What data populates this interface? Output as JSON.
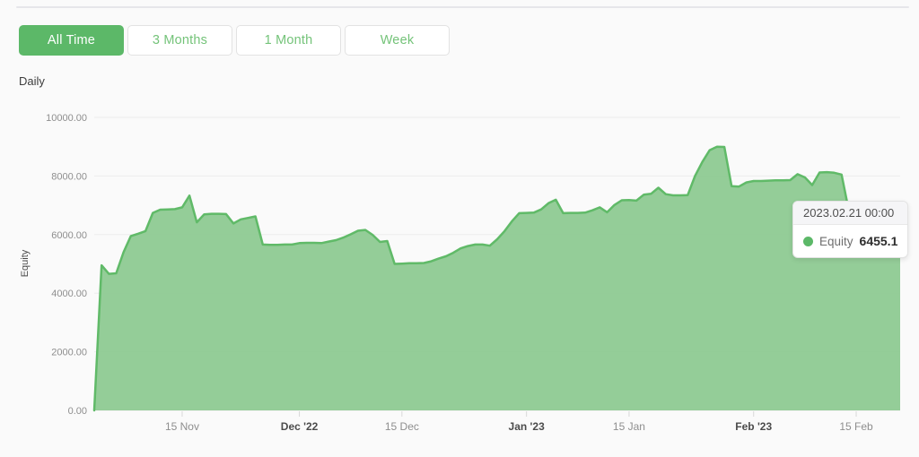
{
  "toolbar": {
    "buttons": [
      {
        "label": "All Time",
        "active": true
      },
      {
        "label": "3 Months",
        "active": false
      },
      {
        "label": "1 Month",
        "active": false
      },
      {
        "label": "Week",
        "active": false
      }
    ]
  },
  "period_label": "Daily",
  "colors": {
    "accent_green": "#5cb868",
    "area_fill": "#8cc990",
    "area_line": "#60ba68",
    "grid_line": "#ececec",
    "tick_mark": "#d8d8d8",
    "axis_label": "#8e8e8e",
    "axis_label_bold": "#4b4b4b"
  },
  "tooltip": {
    "date": "2023.02.21 00:00",
    "series": "Equity",
    "value": "6455.1"
  },
  "chart_data": {
    "type": "area",
    "title": "",
    "xlabel": "",
    "ylabel": "Equity",
    "ylim": [
      0,
      10000
    ],
    "grid": true,
    "legend": "none",
    "y_ticks": [
      {
        "value": 0,
        "label": "0.00"
      },
      {
        "value": 2000,
        "label": "2000.00"
      },
      {
        "value": 4000,
        "label": "4000.00"
      },
      {
        "value": 6000,
        "label": "6000.00"
      },
      {
        "value": 8000,
        "label": "8000.00"
      },
      {
        "value": 10000,
        "label": "10000.00"
      }
    ],
    "x_ticks": [
      {
        "date": "2022-11-15",
        "label": "15 Nov",
        "bold": false
      },
      {
        "date": "2022-12-01",
        "label": "Dec '22",
        "bold": true
      },
      {
        "date": "2022-12-15",
        "label": "15 Dec",
        "bold": false
      },
      {
        "date": "2023-01-01",
        "label": "Jan '23",
        "bold": true
      },
      {
        "date": "2023-01-15",
        "label": "15 Jan",
        "bold": false
      },
      {
        "date": "2023-02-01",
        "label": "Feb '23",
        "bold": true
      },
      {
        "date": "2023-02-15",
        "label": "15 Feb",
        "bold": false
      }
    ],
    "series": [
      {
        "name": "Equity",
        "points": [
          [
            "2022-11-03",
            0
          ],
          [
            "2022-11-04",
            4950
          ],
          [
            "2022-11-05",
            4660
          ],
          [
            "2022-11-06",
            4680
          ],
          [
            "2022-11-07",
            5400
          ],
          [
            "2022-11-08",
            5950
          ],
          [
            "2022-11-09",
            6030
          ],
          [
            "2022-11-10",
            6120
          ],
          [
            "2022-11-11",
            6740
          ],
          [
            "2022-11-12",
            6850
          ],
          [
            "2022-11-13",
            6860
          ],
          [
            "2022-11-14",
            6870
          ],
          [
            "2022-11-15",
            6930
          ],
          [
            "2022-11-16",
            7330
          ],
          [
            "2022-11-17",
            6420
          ],
          [
            "2022-11-18",
            6690
          ],
          [
            "2022-11-19",
            6710
          ],
          [
            "2022-11-20",
            6710
          ],
          [
            "2022-11-21",
            6700
          ],
          [
            "2022-11-22",
            6380
          ],
          [
            "2022-11-23",
            6520
          ],
          [
            "2022-11-24",
            6570
          ],
          [
            "2022-11-25",
            6620
          ],
          [
            "2022-11-26",
            5660
          ],
          [
            "2022-11-27",
            5650
          ],
          [
            "2022-11-28",
            5650
          ],
          [
            "2022-11-29",
            5660
          ],
          [
            "2022-11-30",
            5660
          ],
          [
            "2022-12-01",
            5710
          ],
          [
            "2022-12-02",
            5720
          ],
          [
            "2022-12-03",
            5720
          ],
          [
            "2022-12-04",
            5710
          ],
          [
            "2022-12-05",
            5760
          ],
          [
            "2022-12-06",
            5810
          ],
          [
            "2022-12-07",
            5900
          ],
          [
            "2022-12-08",
            6010
          ],
          [
            "2022-12-09",
            6130
          ],
          [
            "2022-12-10",
            6160
          ],
          [
            "2022-12-11",
            5990
          ],
          [
            "2022-12-12",
            5750
          ],
          [
            "2022-12-13",
            5780
          ],
          [
            "2022-12-14",
            5000
          ],
          [
            "2022-12-15",
            5010
          ],
          [
            "2022-12-16",
            5020
          ],
          [
            "2022-12-17",
            5020
          ],
          [
            "2022-12-18",
            5030
          ],
          [
            "2022-12-19",
            5090
          ],
          [
            "2022-12-20",
            5180
          ],
          [
            "2022-12-21",
            5260
          ],
          [
            "2022-12-22",
            5380
          ],
          [
            "2022-12-23",
            5530
          ],
          [
            "2022-12-24",
            5610
          ],
          [
            "2022-12-25",
            5660
          ],
          [
            "2022-12-26",
            5660
          ],
          [
            "2022-12-27",
            5620
          ],
          [
            "2022-12-28",
            5840
          ],
          [
            "2022-12-29",
            6120
          ],
          [
            "2022-12-30",
            6450
          ],
          [
            "2022-12-31",
            6730
          ],
          [
            "2023-01-01",
            6740
          ],
          [
            "2023-01-02",
            6750
          ],
          [
            "2023-01-03",
            6860
          ],
          [
            "2023-01-04",
            7070
          ],
          [
            "2023-01-05",
            7190
          ],
          [
            "2023-01-06",
            6730
          ],
          [
            "2023-01-07",
            6740
          ],
          [
            "2023-01-08",
            6740
          ],
          [
            "2023-01-09",
            6750
          ],
          [
            "2023-01-10",
            6830
          ],
          [
            "2023-01-11",
            6930
          ],
          [
            "2023-01-12",
            6760
          ],
          [
            "2023-01-13",
            7010
          ],
          [
            "2023-01-14",
            7170
          ],
          [
            "2023-01-15",
            7180
          ],
          [
            "2023-01-16",
            7160
          ],
          [
            "2023-01-17",
            7360
          ],
          [
            "2023-01-18",
            7390
          ],
          [
            "2023-01-19",
            7600
          ],
          [
            "2023-01-20",
            7380
          ],
          [
            "2023-01-21",
            7340
          ],
          [
            "2023-01-22",
            7340
          ],
          [
            "2023-01-23",
            7350
          ],
          [
            "2023-01-24",
            8000
          ],
          [
            "2023-01-25",
            8480
          ],
          [
            "2023-01-26",
            8880
          ],
          [
            "2023-01-27",
            9000
          ],
          [
            "2023-01-28",
            8990
          ],
          [
            "2023-01-29",
            7650
          ],
          [
            "2023-01-30",
            7640
          ],
          [
            "2023-01-31",
            7780
          ],
          [
            "2023-02-01",
            7830
          ],
          [
            "2023-02-02",
            7830
          ],
          [
            "2023-02-03",
            7840
          ],
          [
            "2023-02-04",
            7850
          ],
          [
            "2023-02-05",
            7850
          ],
          [
            "2023-02-06",
            7860
          ],
          [
            "2023-02-07",
            8060
          ],
          [
            "2023-02-08",
            7950
          ],
          [
            "2023-02-09",
            7690
          ],
          [
            "2023-02-10",
            8120
          ],
          [
            "2023-02-11",
            8130
          ],
          [
            "2023-02-12",
            8110
          ],
          [
            "2023-02-13",
            8050
          ],
          [
            "2023-02-14",
            6800
          ],
          [
            "2023-02-15",
            6520
          ],
          [
            "2023-02-16",
            6470
          ],
          [
            "2023-02-17",
            6460
          ],
          [
            "2023-02-18",
            6455
          ],
          [
            "2023-02-19",
            6455
          ],
          [
            "2023-02-20",
            6455
          ],
          [
            "2023-02-21",
            6455.1
          ]
        ]
      }
    ]
  }
}
